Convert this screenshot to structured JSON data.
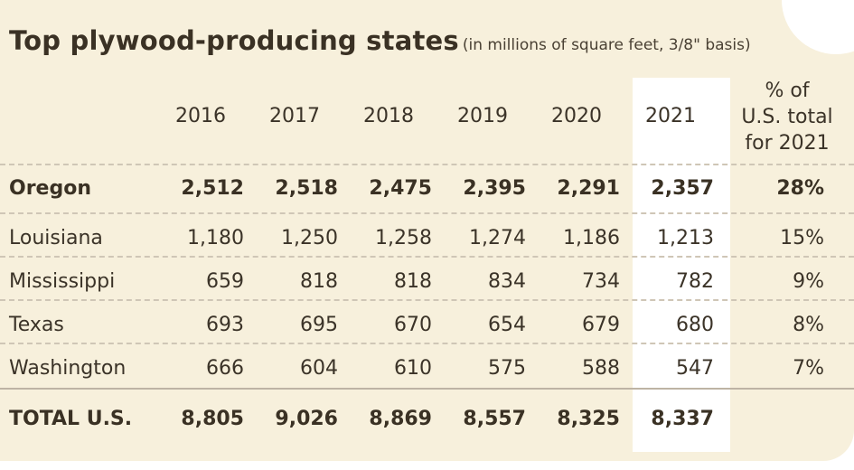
{
  "chart_data": {
    "type": "table",
    "title": "Top plywood-producing states",
    "subtitle": "(in millions of square feet, 3/8\" basis)",
    "columns": [
      "2016",
      "2017",
      "2018",
      "2019",
      "2020",
      "2021"
    ],
    "pct_header": [
      "% of",
      "U.S. total",
      "for 2021"
    ],
    "rows": [
      {
        "state": "Oregon",
        "values": [
          "2,512",
          "2,518",
          "2,475",
          "2,395",
          "2,291",
          "2,357"
        ],
        "pct": "28%"
      },
      {
        "state": "Louisiana",
        "values": [
          "1,180",
          "1,250",
          "1,258",
          "1,274",
          "1,186",
          "1,213"
        ],
        "pct": "15%"
      },
      {
        "state": "Mississippi",
        "values": [
          "659",
          "818",
          "818",
          "834",
          "734",
          "782"
        ],
        "pct": "9%"
      },
      {
        "state": "Texas",
        "values": [
          "693",
          "695",
          "670",
          "654",
          "679",
          "680"
        ],
        "pct": "8%"
      },
      {
        "state": "Washington",
        "values": [
          "666",
          "604",
          "610",
          "575",
          "588",
          "547"
        ],
        "pct": "7%"
      }
    ],
    "total": {
      "state": "TOTAL U.S.",
      "values": [
        "8,805",
        "9,026",
        "8,869",
        "8,557",
        "8,325",
        "8,337"
      ],
      "pct": ""
    },
    "highlight_column": "2021"
  },
  "colors": {
    "background": "#f7f0dc",
    "highlight": "#ffffff",
    "text": "#3b3328",
    "divider": "#cfc6b6"
  }
}
